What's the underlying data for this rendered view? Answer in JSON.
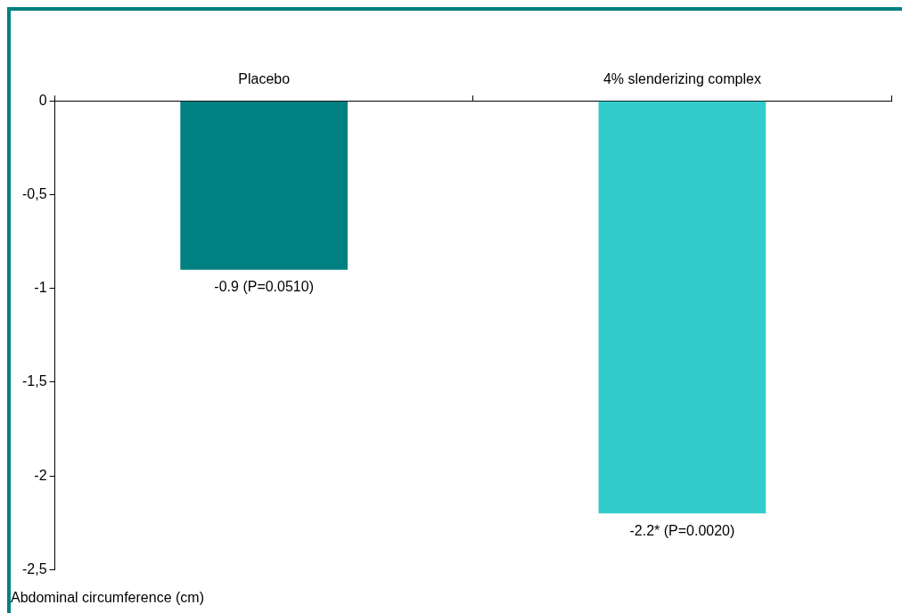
{
  "chart_data": {
    "type": "bar",
    "ylabel": "Abdominal circumference (cm)",
    "categories": [
      "Placebo",
      "4% slenderizing complex"
    ],
    "values": [
      -0.9,
      -2.2
    ],
    "colors": [
      "#008080",
      "#33cccc"
    ],
    "value_labels": [
      "-0.9 (P=0.0510)",
      "-2.2* (P=0.0020)"
    ],
    "ylim": [
      -2.5,
      0
    ],
    "yticks": [
      {
        "value": 0,
        "label": "0"
      },
      {
        "value": -0.5,
        "label": "-0,5"
      },
      {
        "value": -1,
        "label": "-1"
      },
      {
        "value": -1.5,
        "label": "-1,5"
      },
      {
        "value": -2,
        "label": "-2"
      },
      {
        "value": -2.5,
        "label": "-2,5"
      }
    ],
    "grid": false,
    "legend": false
  }
}
